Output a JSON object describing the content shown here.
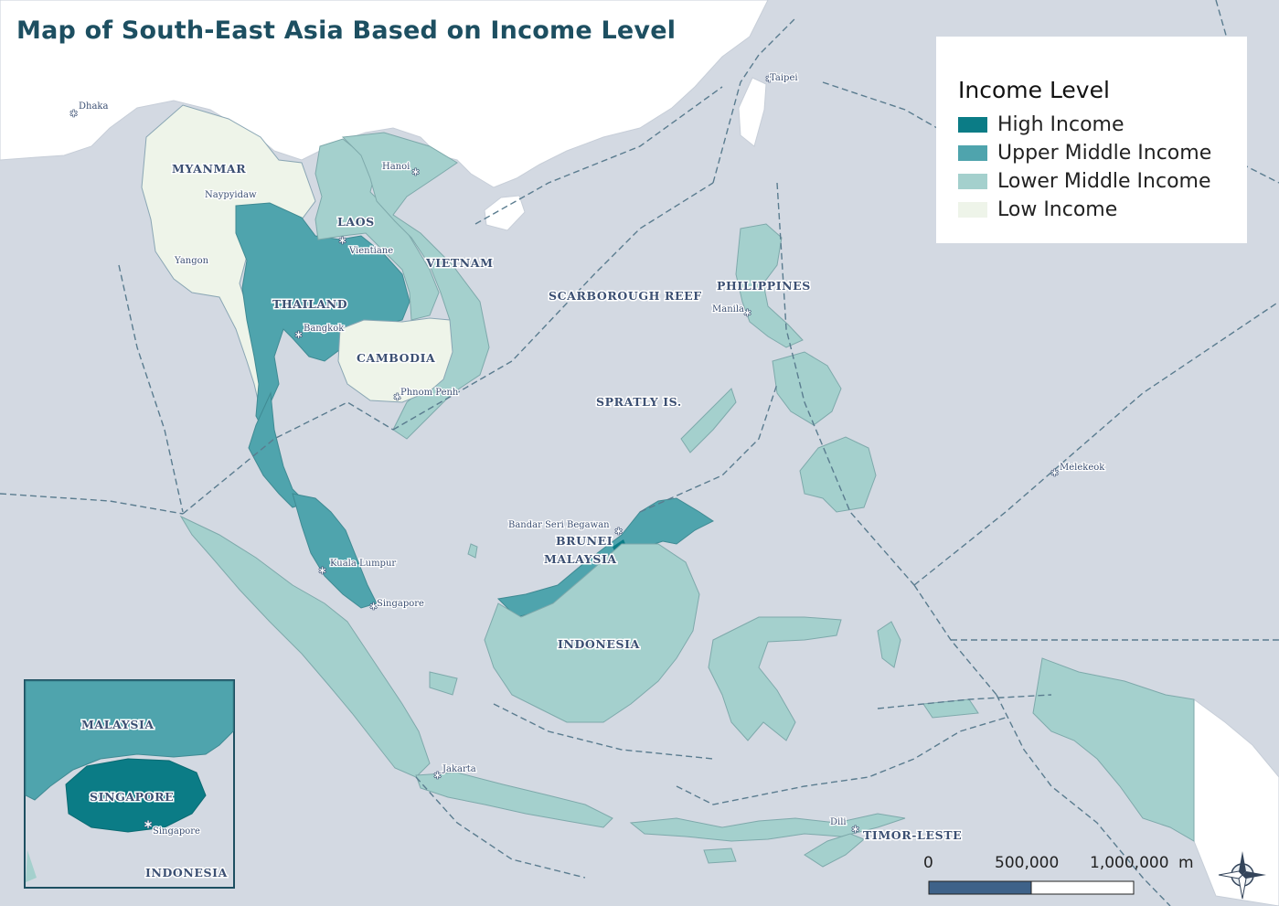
{
  "title": "Map of South-East Asia Based on Income Level",
  "legend": {
    "title": "Income Level",
    "items": [
      {
        "label": "High Income",
        "color": "#0b7c86"
      },
      {
        "label": "Upper Middle Income",
        "color": "#4fa4ad"
      },
      {
        "label": "Lower Middle Income",
        "color": "#a4d0cd"
      },
      {
        "label": "Low Income",
        "color": "#eef4e9"
      }
    ]
  },
  "countries": {
    "myanmar": "MYANMAR",
    "laos": "LAOS",
    "vietnam": "VIETNAM",
    "thailand": "THAILAND",
    "cambodia": "CAMBODIA",
    "philippines": "PHILIPPINES",
    "brunei": "BRUNEI",
    "malaysia": "MALAYSIA",
    "indonesia": "INDONESIA",
    "timor_leste": "TIMOR-LESTE"
  },
  "features": {
    "scarborough": "SCARBOROUGH REEF",
    "spratly": "SPRATLY IS."
  },
  "cities": {
    "dhaka": "Dhaka",
    "taipei": "Taipei",
    "hanoi": "Hanoi",
    "naypyidaw": "Naypyidaw",
    "vientiane": "Vientiane",
    "yangon": "Yangon",
    "bangkok": "Bangkok",
    "manila": "Manila",
    "phnom_penh": "Phnom Penh",
    "melekeok": "Melekeok",
    "bandar": "Bandar Seri Begawan",
    "kuala_lumpur": "Kuala Lumpur",
    "singapore": "Singapore",
    "jakarta": "Jakarta",
    "dili": "Dili"
  },
  "inset": {
    "malaysia": "MALAYSIA",
    "singapore": "SINGAPORE",
    "singapore_city": "Singapore",
    "indonesia": "INDONESIA"
  },
  "scale_bar": {
    "tick_0": "0",
    "tick_1": "500,000",
    "tick_2": "1,000,000",
    "unit": "m"
  },
  "colors": {
    "sea": "#d3d9e2",
    "other_land": "#ffffff",
    "border": "#5a7c8f"
  },
  "icons": {
    "compass": "compass-rose-icon",
    "capital": "asterisk-star-icon"
  }
}
